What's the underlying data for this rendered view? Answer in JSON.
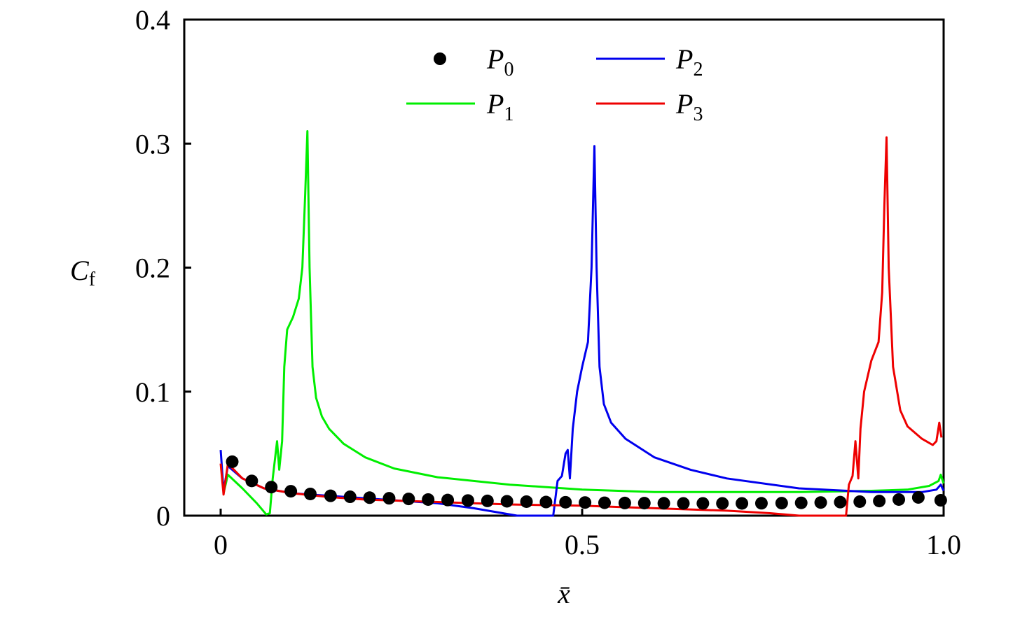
{
  "chart_data": {
    "type": "line",
    "title": "",
    "xlabel": "x̄",
    "ylabel": "C",
    "ylabel_sub": "f",
    "xlim": [
      -0.05,
      1.0
    ],
    "ylim": [
      0,
      0.4
    ],
    "xticks": [
      {
        "v": 0,
        "label": "0"
      },
      {
        "v": 0.5,
        "label": "0.5"
      },
      {
        "v": 1.0,
        "label": "1.0"
      }
    ],
    "yticks": [
      {
        "v": 0,
        "label": "0"
      },
      {
        "v": 0.1,
        "label": "0.1"
      },
      {
        "v": 0.2,
        "label": "0.2"
      },
      {
        "v": 0.3,
        "label": "0.3"
      },
      {
        "v": 0.4,
        "label": "0.4"
      }
    ],
    "legend_position": "top-center",
    "series": [
      {
        "name": "P",
        "sub": "0",
        "style": "markers",
        "color": "#000000",
        "x": [
          0.016,
          0.043,
          0.07,
          0.097,
          0.124,
          0.152,
          0.179,
          0.206,
          0.233,
          0.26,
          0.287,
          0.314,
          0.342,
          0.369,
          0.396,
          0.423,
          0.45,
          0.477,
          0.504,
          0.531,
          0.559,
          0.586,
          0.613,
          0.64,
          0.667,
          0.694,
          0.721,
          0.748,
          0.776,
          0.803,
          0.83,
          0.857,
          0.884,
          0.911,
          0.938,
          0.965,
          0.996
        ],
        "y": [
          0.0435,
          0.028,
          0.023,
          0.0197,
          0.0175,
          0.016,
          0.0152,
          0.0145,
          0.014,
          0.0135,
          0.013,
          0.0126,
          0.0122,
          0.0119,
          0.0116,
          0.0113,
          0.011,
          0.0108,
          0.0106,
          0.0104,
          0.0102,
          0.0101,
          0.01,
          0.0099,
          0.0099,
          0.0099,
          0.0099,
          0.01,
          0.0101,
          0.0103,
          0.0106,
          0.0109,
          0.0113,
          0.0118,
          0.013,
          0.0147,
          0.0124
        ]
      },
      {
        "name": "P",
        "sub": "1",
        "style": "line",
        "color": "#00ee00",
        "x": [
          0.004,
          0.01,
          0.03,
          0.05,
          0.063,
          0.068,
          0.072,
          0.078,
          0.081,
          0.085,
          0.088,
          0.092,
          0.1,
          0.108,
          0.113,
          0.117,
          0.12,
          0.123,
          0.127,
          0.132,
          0.14,
          0.15,
          0.17,
          0.2,
          0.24,
          0.3,
          0.4,
          0.5,
          0.6,
          0.7,
          0.8,
          0.9,
          0.95,
          0.98,
          0.993,
          0.996,
          1.0
        ],
        "y": [
          0.018,
          0.033,
          0.022,
          0.01,
          0.001,
          0.002,
          0.03,
          0.06,
          0.037,
          0.06,
          0.12,
          0.15,
          0.16,
          0.175,
          0.2,
          0.26,
          0.31,
          0.2,
          0.12,
          0.095,
          0.08,
          0.07,
          0.058,
          0.047,
          0.038,
          0.031,
          0.025,
          0.021,
          0.019,
          0.019,
          0.019,
          0.02,
          0.021,
          0.024,
          0.028,
          0.033,
          0.026
        ]
      },
      {
        "name": "P",
        "sub": "2",
        "style": "line",
        "color": "#0000ee",
        "x": [
          0.0,
          0.004,
          0.01,
          0.03,
          0.06,
          0.1,
          0.15,
          0.2,
          0.3,
          0.35,
          0.41,
          0.46,
          0.466,
          0.472,
          0.477,
          0.48,
          0.483,
          0.487,
          0.493,
          0.5,
          0.508,
          0.513,
          0.517,
          0.52,
          0.524,
          0.53,
          0.54,
          0.56,
          0.6,
          0.65,
          0.7,
          0.8,
          0.9,
          0.97,
          0.99,
          0.996,
          1.0
        ],
        "y": [
          0.053,
          0.02,
          0.04,
          0.03,
          0.022,
          0.018,
          0.016,
          0.014,
          0.01,
          0.006,
          0.0,
          0.0,
          0.028,
          0.032,
          0.05,
          0.053,
          0.03,
          0.07,
          0.1,
          0.12,
          0.14,
          0.2,
          0.298,
          0.2,
          0.12,
          0.09,
          0.075,
          0.062,
          0.047,
          0.037,
          0.03,
          0.022,
          0.019,
          0.019,
          0.021,
          0.025,
          0.02
        ]
      },
      {
        "name": "P",
        "sub": "3",
        "style": "line",
        "color": "#ee0000",
        "x": [
          0.0,
          0.004,
          0.01,
          0.03,
          0.06,
          0.1,
          0.15,
          0.2,
          0.3,
          0.4,
          0.5,
          0.6,
          0.7,
          0.76,
          0.8,
          0.865,
          0.869,
          0.874,
          0.878,
          0.882,
          0.885,
          0.89,
          0.9,
          0.91,
          0.915,
          0.918,
          0.921,
          0.924,
          0.93,
          0.94,
          0.95,
          0.97,
          0.985,
          0.99,
          0.994,
          0.997
        ],
        "y": [
          0.042,
          0.017,
          0.042,
          0.03,
          0.022,
          0.018,
          0.015,
          0.013,
          0.011,
          0.009,
          0.008,
          0.006,
          0.004,
          0.002,
          0.0,
          0.0,
          0.025,
          0.032,
          0.06,
          0.03,
          0.07,
          0.1,
          0.125,
          0.14,
          0.18,
          0.25,
          0.305,
          0.2,
          0.12,
          0.085,
          0.072,
          0.062,
          0.057,
          0.06,
          0.075,
          0.063
        ]
      }
    ]
  }
}
